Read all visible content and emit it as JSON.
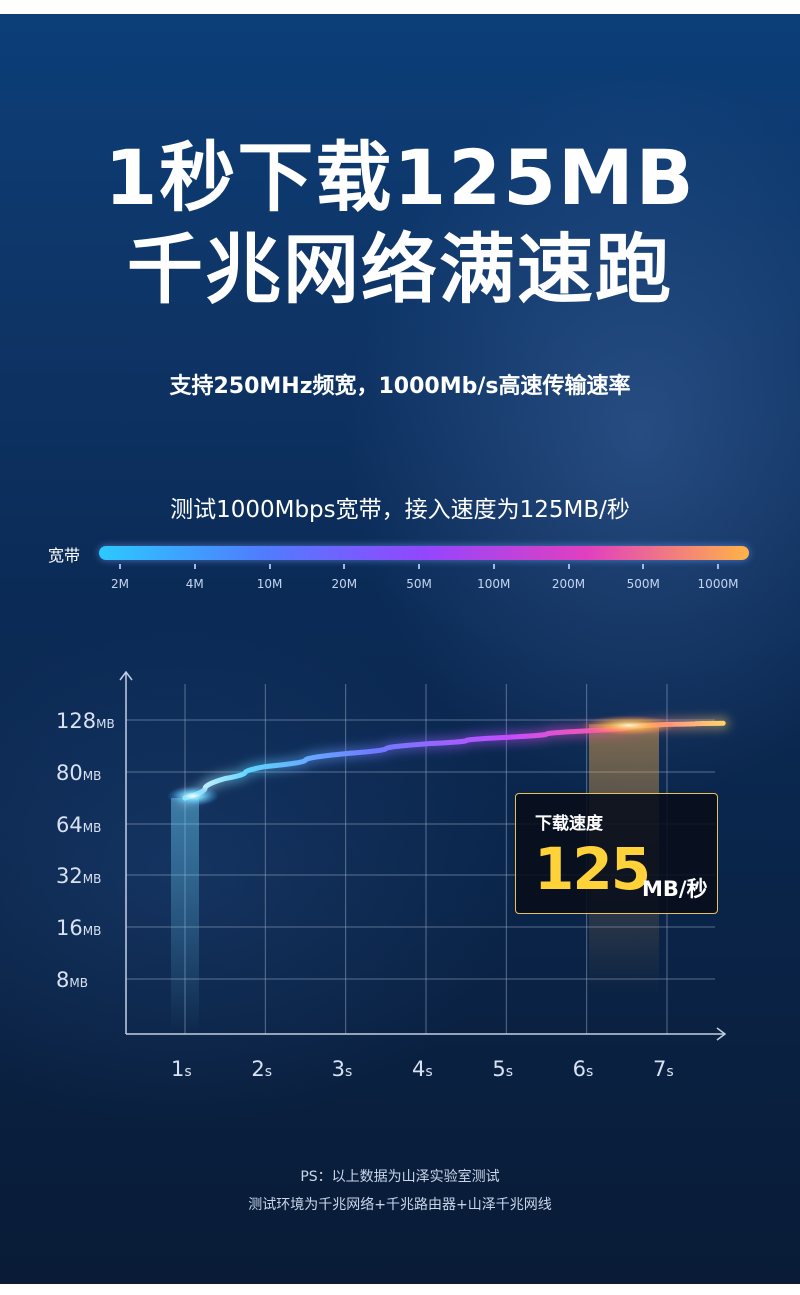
{
  "headline": {
    "line1": "1秒下载125MB",
    "line2": "千兆网络满速跑"
  },
  "subtitle": "支持250MHz频宽，1000Mb/s高速传输速率",
  "test_note": "测试1000Mbps宽带，接入速度为125MB/秒",
  "bandwidth": {
    "label": "宽带",
    "ticks": [
      "2M",
      "4M",
      "10M",
      "20M",
      "50M",
      "100M",
      "200M",
      "500M",
      "1000M"
    ],
    "gradient": [
      "#2cc9ff",
      "#4f7dff",
      "#9346ff",
      "#e13fbf",
      "#ffb347"
    ]
  },
  "chart_data": {
    "type": "line",
    "x": [
      1,
      2,
      3,
      4,
      5,
      6,
      7
    ],
    "x_tick_labels": [
      {
        "value": "1",
        "unit": "s"
      },
      {
        "value": "2",
        "unit": "s"
      },
      {
        "value": "3",
        "unit": "s"
      },
      {
        "value": "4",
        "unit": "s"
      },
      {
        "value": "5",
        "unit": "s"
      },
      {
        "value": "6",
        "unit": "s"
      },
      {
        "value": "7",
        "unit": "s"
      }
    ],
    "y_tick_labels": [
      {
        "value": "128",
        "unit": "MB"
      },
      {
        "value": "80",
        "unit": "MB"
      },
      {
        "value": "64",
        "unit": "MB"
      },
      {
        "value": "32",
        "unit": "MB"
      },
      {
        "value": "16",
        "unit": "MB"
      },
      {
        "value": "8",
        "unit": "MB"
      }
    ],
    "y_tick_levels": [
      128,
      80,
      64,
      32,
      16,
      8
    ],
    "curve": {
      "x": [
        1,
        1.5,
        2,
        3,
        4,
        5,
        6,
        7
      ],
      "y": [
        72,
        78,
        85,
        97,
        106,
        112,
        118,
        124
      ]
    },
    "xlim": [
      0.25,
      7.75
    ],
    "grid": true,
    "annotation": {
      "title": "下载速度",
      "value": "125",
      "unit": "MB/秒"
    }
  },
  "footnote": {
    "line1": "PS：以上数据为山泽实验室测试",
    "line2": "测试环境为千兆网络+千兆路由器+山泽千兆网线"
  },
  "colors": {
    "accent_gold": "#ffd23a",
    "box_border": "#e7c357",
    "grid": "#9aa9c2"
  }
}
